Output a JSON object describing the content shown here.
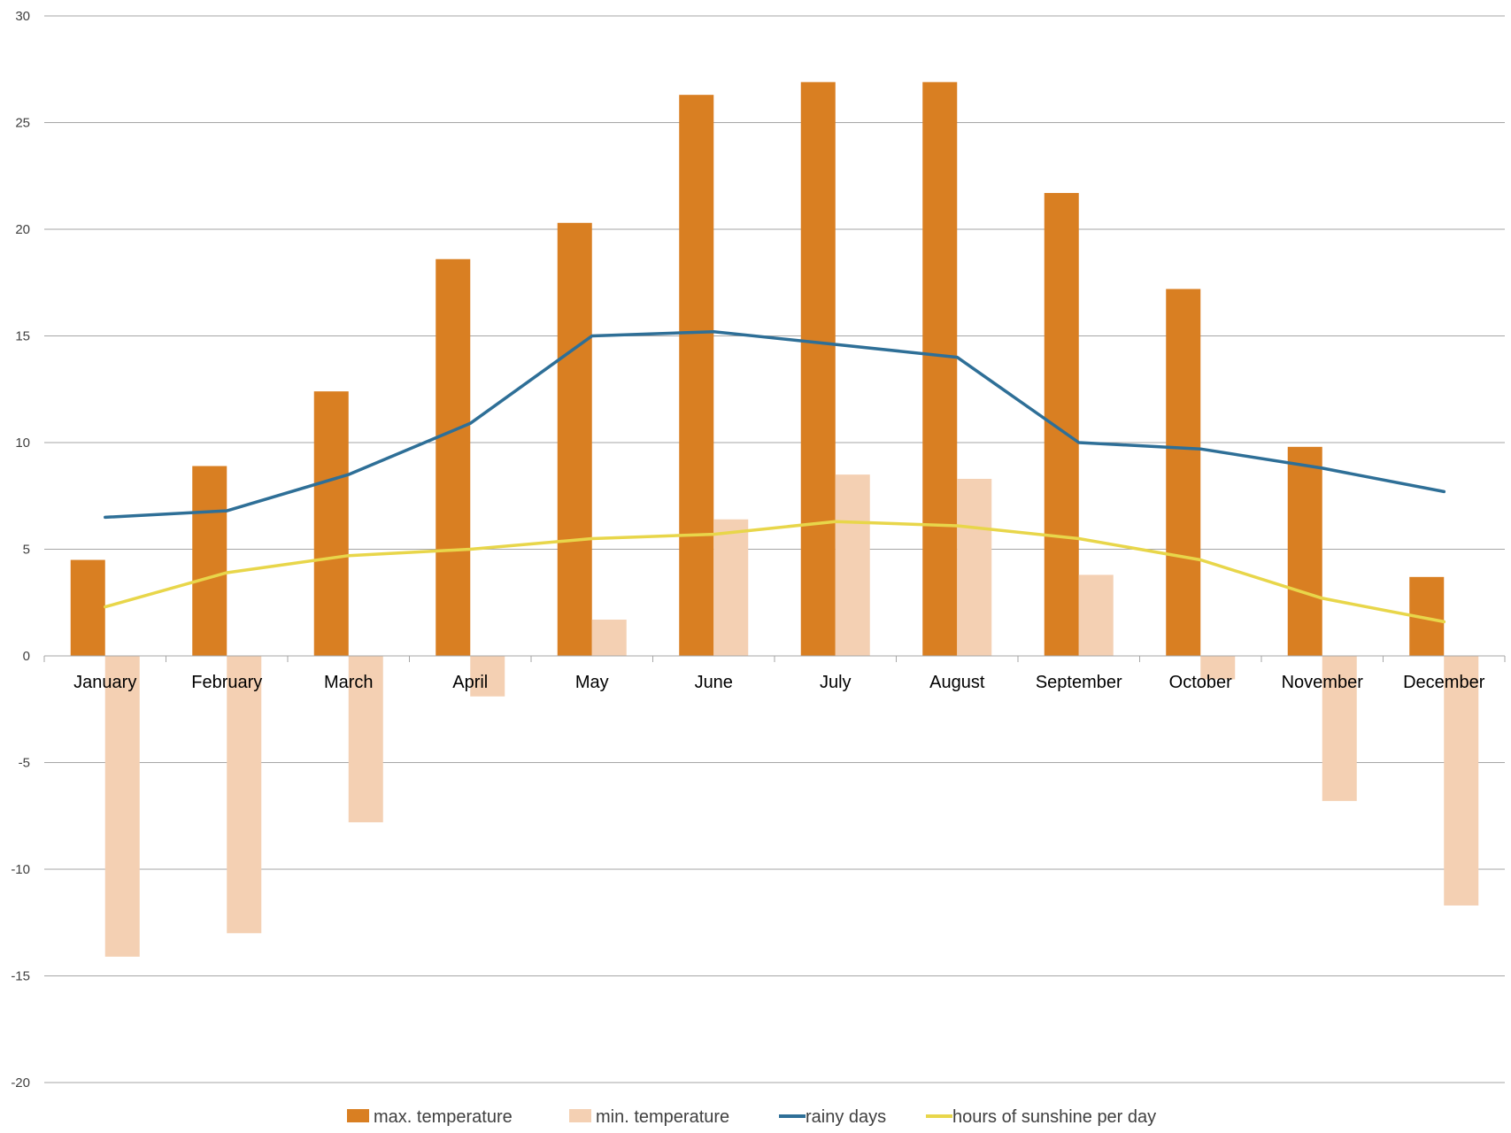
{
  "chart_data": {
    "type": "bar",
    "categories": [
      "January",
      "February",
      "March",
      "April",
      "May",
      "June",
      "July",
      "August",
      "September",
      "October",
      "November",
      "December"
    ],
    "ylim": [
      -20,
      30
    ],
    "y_ticks": [
      30,
      25,
      20,
      15,
      10,
      5,
      0,
      -5,
      -10,
      -15,
      -20
    ],
    "grid": true,
    "legend_position": "bottom",
    "series": [
      {
        "name": "max.  temperature",
        "type": "bar",
        "color": "#D97F22",
        "values": [
          4.5,
          8.9,
          12.4,
          18.6,
          20.3,
          26.3,
          26.9,
          26.9,
          21.7,
          17.2,
          9.8,
          3.7
        ]
      },
      {
        "name": "min. temperature",
        "type": "bar",
        "color": "#F4D0B3",
        "values": [
          -14.1,
          -13.0,
          -7.8,
          -1.9,
          1.7,
          6.4,
          8.5,
          8.3,
          3.8,
          -1.1,
          -6.8,
          -11.7
        ]
      },
      {
        "name": "rainy days",
        "type": "line",
        "color": "#2E6F97",
        "values": [
          6.5,
          6.8,
          8.5,
          10.9,
          15.0,
          15.2,
          14.6,
          14.0,
          10.0,
          9.7,
          8.8,
          7.7
        ]
      },
      {
        "name": "hours of sunshine per day",
        "type": "line",
        "color": "#E8D64A",
        "values": [
          2.3,
          3.9,
          4.7,
          5.0,
          5.5,
          5.7,
          6.3,
          6.1,
          5.5,
          4.5,
          2.7,
          1.6
        ]
      }
    ]
  }
}
